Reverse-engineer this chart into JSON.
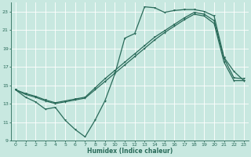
{
  "xlabel": "Humidex (Indice chaleur)",
  "bg_color": "#c8e8e0",
  "grid_color": "#ffffff",
  "line_color": "#2a6b5a",
  "xlim": [
    -0.5,
    23.5
  ],
  "ylim": [
    9,
    24
  ],
  "xticks": [
    0,
    1,
    2,
    3,
    4,
    5,
    6,
    7,
    8,
    9,
    10,
    11,
    12,
    13,
    14,
    15,
    16,
    17,
    18,
    19,
    20,
    21,
    22,
    23
  ],
  "yticks": [
    9,
    11,
    13,
    15,
    17,
    19,
    21,
    23
  ],
  "line1_x": [
    0,
    1,
    2,
    3,
    4,
    5,
    6,
    7,
    8,
    9,
    10,
    11,
    12,
    13,
    14,
    15,
    16,
    17,
    18,
    19,
    20,
    21,
    22,
    23
  ],
  "line1_y": [
    14.5,
    13.7,
    13.2,
    12.4,
    12.6,
    11.2,
    10.2,
    9.4,
    11.2,
    13.3,
    16.2,
    20.1,
    20.6,
    23.5,
    23.4,
    22.9,
    23.1,
    23.2,
    23.2,
    23.0,
    22.5,
    18.0,
    16.5,
    15.5
  ],
  "line2_x": [
    0,
    1,
    2,
    3,
    4,
    5,
    6,
    7,
    8,
    9,
    10,
    11,
    12,
    13,
    14,
    15,
    16,
    17,
    18,
    19,
    20,
    21,
    22,
    23
  ],
  "line2_y": [
    14.5,
    14.0,
    13.7,
    13.3,
    13.0,
    13.2,
    13.4,
    13.6,
    14.5,
    15.4,
    16.3,
    17.2,
    18.1,
    19.0,
    19.9,
    20.7,
    21.4,
    22.1,
    22.7,
    22.5,
    21.7,
    17.5,
    15.5,
    15.5
  ],
  "line3_x": [
    0,
    1,
    2,
    3,
    4,
    5,
    6,
    7,
    8,
    9,
    10,
    11,
    12,
    13,
    14,
    15,
    16,
    17,
    18,
    19,
    20,
    21,
    22,
    23
  ],
  "line3_y": [
    14.5,
    14.1,
    13.8,
    13.4,
    13.1,
    13.3,
    13.5,
    13.7,
    14.7,
    15.7,
    16.6,
    17.5,
    18.4,
    19.3,
    20.2,
    20.9,
    21.6,
    22.3,
    22.9,
    22.7,
    22.0,
    17.9,
    15.8,
    15.7
  ]
}
